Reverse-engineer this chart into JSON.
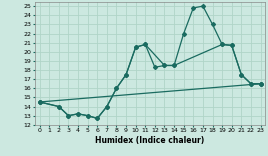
{
  "xlabel": "Humidex (Indice chaleur)",
  "xlim": [
    -0.5,
    23.5
  ],
  "ylim": [
    12,
    25.5
  ],
  "xticks": [
    0,
    1,
    2,
    3,
    4,
    5,
    6,
    7,
    8,
    9,
    10,
    11,
    12,
    13,
    14,
    15,
    16,
    17,
    18,
    19,
    20,
    21,
    22,
    23
  ],
  "yticks": [
    12,
    13,
    14,
    15,
    16,
    17,
    18,
    19,
    20,
    21,
    22,
    23,
    24,
    25
  ],
  "bg_color": "#cce8e0",
  "line_color": "#1a6b60",
  "grid_color": "#b0d4c8",
  "line1_x": [
    0,
    2,
    3,
    4,
    5,
    6,
    7,
    8,
    9,
    10,
    11,
    12,
    13,
    14,
    15,
    16,
    17,
    18,
    19,
    20,
    21,
    22,
    23
  ],
  "line1_y": [
    14.5,
    14.0,
    13.0,
    13.2,
    13.0,
    12.7,
    14.0,
    16.0,
    17.5,
    20.5,
    20.8,
    18.3,
    18.5,
    18.5,
    22.0,
    24.8,
    25.0,
    23.0,
    20.8,
    20.7,
    17.5,
    16.5,
    16.5
  ],
  "line2_x": [
    0,
    2,
    3,
    4,
    5,
    6,
    7,
    8,
    9,
    10,
    11,
    13,
    14,
    19,
    20,
    21,
    22,
    23
  ],
  "line2_y": [
    14.5,
    14.0,
    13.0,
    13.2,
    13.0,
    12.7,
    14.0,
    16.0,
    17.5,
    20.5,
    20.8,
    18.5,
    18.5,
    20.8,
    20.7,
    17.5,
    16.5,
    16.5
  ],
  "line3_x": [
    0,
    23
  ],
  "line3_y": [
    14.5,
    16.5
  ]
}
